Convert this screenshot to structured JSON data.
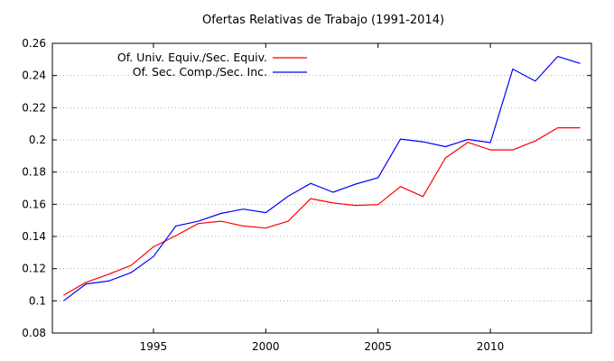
{
  "chart_data": {
    "type": "line",
    "title": "Ofertas Relativas de Trabajo (1991-2014)",
    "xlabel": "",
    "ylabel": "",
    "xlim": [
      1990.5,
      2014.5
    ],
    "ylim": [
      0.08,
      0.26
    ],
    "x_ticks": [
      1995,
      2000,
      2005,
      2010
    ],
    "y_ticks": [
      0.08,
      0.1,
      0.12,
      0.14,
      0.16,
      0.18,
      0.2,
      0.22,
      0.24,
      0.26
    ],
    "y_tick_labels": [
      "0.08",
      "0.1",
      "0.12",
      "0.14",
      "0.16",
      "0.18",
      "0.2",
      "0.22",
      "0.24",
      "0.26"
    ],
    "grid": true,
    "legend_position": "top-left",
    "x": [
      1991,
      1992,
      1993,
      1994,
      1995,
      1996,
      1997,
      1998,
      1999,
      2000,
      2001,
      2002,
      2003,
      2004,
      2005,
      2006,
      2007,
      2008,
      2009,
      2010,
      2011,
      2012,
      2013,
      2014
    ],
    "series": [
      {
        "name": "Of. Univ. Equiv./Sec. Equiv.",
        "color": "#ff0000",
        "values": [
          0.1035,
          0.1115,
          0.1165,
          0.122,
          0.1335,
          0.1405,
          0.148,
          0.1495,
          0.1465,
          0.1452,
          0.1495,
          0.1635,
          0.1608,
          0.1593,
          0.1598,
          0.171,
          0.1648,
          0.1888,
          0.1985,
          0.1938,
          0.1938,
          0.1993,
          0.2075,
          0.2075
        ]
      },
      {
        "name": "Of. Sec. Comp./Sec. Inc.",
        "color": "#0000ff",
        "values": [
          0.1,
          0.1105,
          0.1123,
          0.1175,
          0.1275,
          0.1465,
          0.1495,
          0.1543,
          0.157,
          0.1548,
          0.165,
          0.173,
          0.1675,
          0.1725,
          0.1765,
          0.2005,
          0.1988,
          0.1958,
          0.2003,
          0.1983,
          0.244,
          0.2365,
          0.2518,
          0.2475
        ]
      }
    ]
  }
}
